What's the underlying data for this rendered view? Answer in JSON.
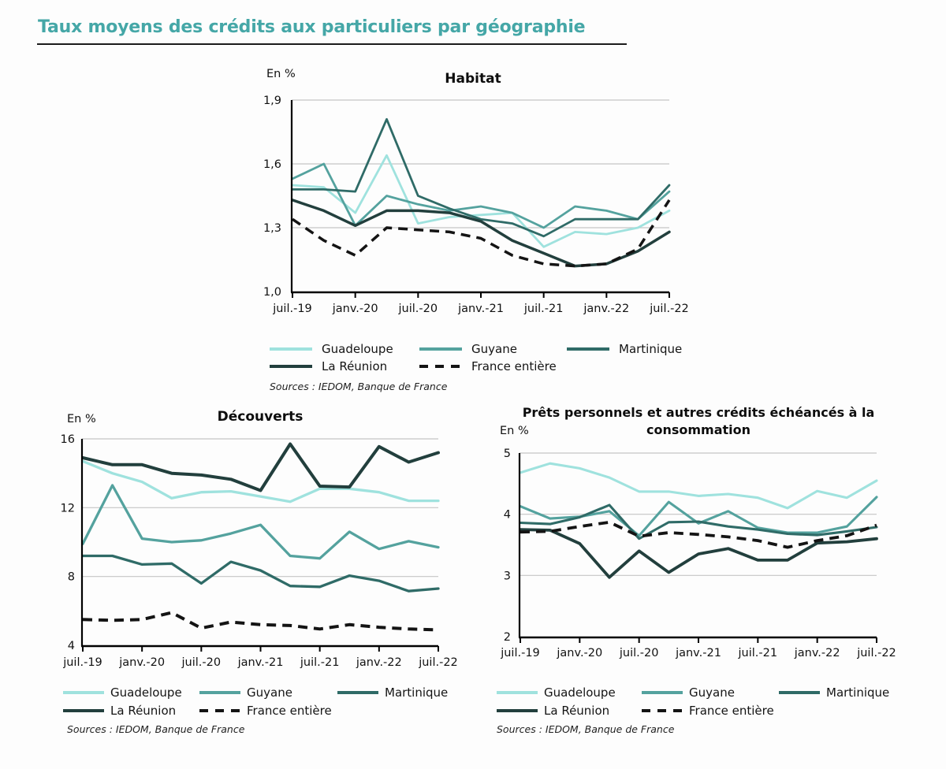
{
  "page_title": "Taux moyens des crédits aux particuliers par géographie",
  "colors": {
    "title_accent": "#45a7a7",
    "guadeloupe": "#9fe2de",
    "guyane": "#54a29e",
    "martinique": "#2f6b67",
    "la_reunion": "#223f3d",
    "france": "#141414",
    "grid": "#c5c5c5",
    "axis": "#000000"
  },
  "chart_data": [
    {
      "type": "line",
      "title": "Habitat",
      "unit": "En %",
      "sources": "Sources : IEDOM, Banque de France",
      "legend_position": "bottom",
      "grid": true,
      "ylim": [
        1.0,
        1.9
      ],
      "y_ticks": [
        1.9,
        1.6,
        1.3,
        1.0
      ],
      "y_tick_labels": [
        "1,9",
        "1,6",
        "1,3",
        "1,0"
      ],
      "y_gridlines": [
        1.3,
        1.6,
        1.9
      ],
      "x_tick_labels": [
        "juil.-19",
        "janv.-20",
        "juil.-20",
        "janv.-21",
        "juil.-21",
        "janv.-22",
        "juil.-22"
      ],
      "categories": [
        "juil.-19",
        "oct.-19",
        "janv.-20",
        "avr.-20",
        "juil.-20",
        "oct.-20",
        "janv.-21",
        "avr.-21",
        "juil.-21",
        "oct.-21",
        "janv.-22",
        "avr.-22",
        "juil.-22"
      ],
      "series": [
        {
          "name": "Guadeloupe",
          "color_key": "guadeloupe",
          "dash": false,
          "values": [
            1.5,
            1.49,
            1.37,
            1.64,
            1.32,
            1.35,
            1.36,
            1.37,
            1.21,
            1.28,
            1.27,
            1.3,
            1.38
          ]
        },
        {
          "name": "Guyane",
          "color_key": "guyane",
          "dash": false,
          "values": [
            1.53,
            1.6,
            1.31,
            1.45,
            1.41,
            1.38,
            1.4,
            1.37,
            1.3,
            1.4,
            1.38,
            1.34,
            1.47
          ]
        },
        {
          "name": "Martinique",
          "color_key": "martinique",
          "dash": false,
          "values": [
            1.48,
            1.48,
            1.47,
            1.81,
            1.45,
            1.39,
            1.34,
            1.32,
            1.26,
            1.34,
            1.34,
            1.34,
            1.5
          ]
        },
        {
          "name": "La Réunion",
          "color_key": "la_reunion",
          "dash": false,
          "values": [
            1.43,
            1.38,
            1.31,
            1.38,
            1.38,
            1.37,
            1.33,
            1.24,
            1.18,
            1.12,
            1.13,
            1.19,
            1.28
          ]
        },
        {
          "name": "France entière",
          "color_key": "france",
          "dash": true,
          "values": [
            1.34,
            1.24,
            1.17,
            1.3,
            1.29,
            1.28,
            1.25,
            1.17,
            1.13,
            1.12,
            1.13,
            1.2,
            1.43
          ]
        }
      ]
    },
    {
      "type": "line",
      "title": "Découverts",
      "unit": "En %",
      "sources": "Sources : IEDOM, Banque de France",
      "legend_position": "bottom",
      "grid": true,
      "ylim": [
        4,
        16
      ],
      "y_ticks": [
        16,
        12,
        8,
        4
      ],
      "y_tick_labels": [
        "16",
        "12",
        "8",
        "4"
      ],
      "y_gridlines": [
        8,
        12,
        16
      ],
      "x_tick_labels": [
        "juil.-19",
        "janv.-20",
        "juil.-20",
        "janv.-21",
        "juil.-21",
        "janv.-22",
        "juil.-22"
      ],
      "categories": [
        "juil.-19",
        "oct.-19",
        "janv.-20",
        "avr.-20",
        "juil.-20",
        "oct.-20",
        "janv.-21",
        "avr.-21",
        "juil.-21",
        "oct.-21",
        "janv.-22",
        "avr.-22",
        "juil.-22"
      ],
      "series": [
        {
          "name": "Guadeloupe",
          "color_key": "guadeloupe",
          "dash": false,
          "values": [
            14.7,
            14.0,
            13.5,
            12.55,
            12.9,
            12.95,
            12.65,
            12.35,
            13.1,
            13.1,
            12.9,
            12.4,
            12.4
          ]
        },
        {
          "name": "Guyane",
          "color_key": "guyane",
          "dash": false,
          "values": [
            9.9,
            13.3,
            10.2,
            10.0,
            10.1,
            10.5,
            11.0,
            9.2,
            9.05,
            10.6,
            9.6,
            10.05,
            9.7
          ]
        },
        {
          "name": "Martinique",
          "color_key": "martinique",
          "dash": false,
          "values": [
            9.2,
            9.2,
            8.7,
            8.75,
            7.6,
            8.85,
            8.35,
            7.45,
            7.4,
            8.05,
            7.75,
            7.15,
            7.3
          ]
        },
        {
          "name": "La Réunion",
          "color_key": "la_reunion",
          "dash": false,
          "values": [
            14.9,
            14.5,
            14.5,
            14.0,
            13.9,
            13.65,
            13.0,
            15.7,
            13.25,
            13.2,
            15.55,
            14.65,
            15.2
          ]
        },
        {
          "name": "France entière",
          "color_key": "france",
          "dash": true,
          "values": [
            5.5,
            5.45,
            5.5,
            5.9,
            5.0,
            5.35,
            5.2,
            5.15,
            4.95,
            5.2,
            5.05,
            4.95,
            4.9
          ]
        }
      ]
    },
    {
      "type": "line",
      "title": "Prêts personnels et autres crédits échéancés à la consommation",
      "unit": "En %",
      "sources": "Sources : IEDOM, Banque de France",
      "legend_position": "bottom",
      "grid": true,
      "ylim": [
        2,
        5
      ],
      "y_ticks": [
        5,
        4,
        3,
        2
      ],
      "y_tick_labels": [
        "5",
        "4",
        "3",
        "2"
      ],
      "y_gridlines": [
        3,
        4,
        5
      ],
      "x_tick_labels": [
        "juil.-19",
        "janv.-20",
        "juil.-20",
        "janv.-21",
        "juil.-21",
        "janv.-22",
        "juil.-22"
      ],
      "categories": [
        "juil.-19",
        "oct.-19",
        "janv.-20",
        "avr.-20",
        "juil.-20",
        "oct.-20",
        "janv.-21",
        "avr.-21",
        "juil.-21",
        "oct.-21",
        "janv.-22",
        "avr.-22",
        "juil.-22"
      ],
      "series": [
        {
          "name": "Guadeloupe",
          "color_key": "guadeloupe",
          "dash": false,
          "values": [
            4.68,
            4.83,
            4.75,
            4.6,
            4.37,
            4.37,
            4.3,
            4.33,
            4.27,
            4.1,
            4.38,
            4.27,
            4.55
          ]
        },
        {
          "name": "Guyane",
          "color_key": "guyane",
          "dash": false,
          "values": [
            4.13,
            3.93,
            3.96,
            4.05,
            3.65,
            4.2,
            3.85,
            4.05,
            3.78,
            3.7,
            3.7,
            3.8,
            4.28
          ]
        },
        {
          "name": "Martinique",
          "color_key": "martinique",
          "dash": false,
          "values": [
            3.86,
            3.84,
            3.95,
            4.15,
            3.6,
            3.87,
            3.88,
            3.8,
            3.75,
            3.68,
            3.66,
            3.72,
            3.79
          ]
        },
        {
          "name": "La Réunion",
          "color_key": "la_reunion",
          "dash": false,
          "values": [
            3.75,
            3.74,
            3.52,
            2.97,
            3.4,
            3.05,
            3.35,
            3.44,
            3.25,
            3.25,
            3.53,
            3.55,
            3.6
          ]
        },
        {
          "name": "France entière",
          "color_key": "france",
          "dash": true,
          "values": [
            3.71,
            3.72,
            3.8,
            3.87,
            3.64,
            3.7,
            3.67,
            3.63,
            3.57,
            3.46,
            3.57,
            3.65,
            3.82
          ]
        }
      ]
    }
  ]
}
